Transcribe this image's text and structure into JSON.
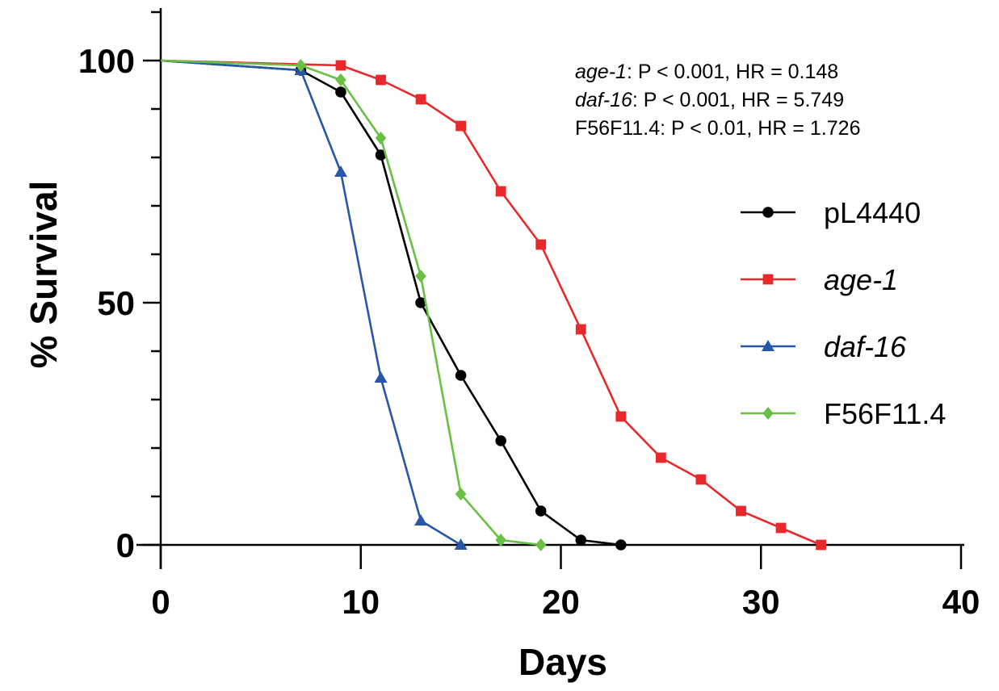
{
  "chart_data": {
    "type": "line",
    "xlabel": "Days",
    "ylabel": "% Survival",
    "xlim": [
      0,
      40
    ],
    "ylim": [
      0,
      110
    ],
    "xticks": [
      0,
      10,
      20,
      30,
      40
    ],
    "yticks_labeled": [
      0,
      50,
      100
    ],
    "yticks_minor": [
      10,
      20,
      30,
      40,
      60,
      70,
      80,
      90,
      110
    ],
    "grid": false,
    "legend_position": "right",
    "series": [
      {
        "name": "pL4440",
        "italic": false,
        "color": "#000000",
        "marker": "circle",
        "x": [
          0,
          7,
          9,
          11,
          13,
          15,
          17,
          19,
          21,
          23
        ],
        "y": [
          100,
          98,
          93.5,
          80.5,
          50,
          35,
          21.5,
          7,
          1,
          0
        ]
      },
      {
        "name": "age-1",
        "italic": true,
        "color": "#e8282b",
        "marker": "square",
        "x": [
          0,
          9,
          11,
          13,
          15,
          17,
          19,
          21,
          23,
          25,
          27,
          29,
          31,
          33
        ],
        "y": [
          100,
          99,
          96,
          92,
          86.5,
          73,
          62,
          44.5,
          26.5,
          18,
          13.5,
          7,
          3.5,
          0
        ]
      },
      {
        "name": "daf-16",
        "italic": false,
        "italic_flag": true,
        "color": "#2856a8",
        "marker": "triangle",
        "x": [
          0,
          7,
          9,
          11,
          13,
          15
        ],
        "y": [
          100,
          98,
          77,
          34.5,
          5,
          0
        ]
      },
      {
        "name": "F56F11.4",
        "italic": false,
        "color": "#6abf45",
        "marker": "diamond",
        "x": [
          0,
          7,
          9,
          11,
          13,
          15,
          17,
          19
        ],
        "y": [
          100,
          99,
          96,
          84,
          55.5,
          10.5,
          1,
          0
        ]
      }
    ],
    "annotations": [
      {
        "gene": "age-1",
        "stats": ": P < 0.001, HR = 0.148",
        "gene_italic": true
      },
      {
        "gene": "daf-16",
        "stats": ": P < 0.001, HR = 5.749",
        "gene_italic": true
      },
      {
        "gene": "F56F11.4",
        "stats": ": P < 0.01, HR = 1.726",
        "gene_italic": false
      }
    ]
  }
}
